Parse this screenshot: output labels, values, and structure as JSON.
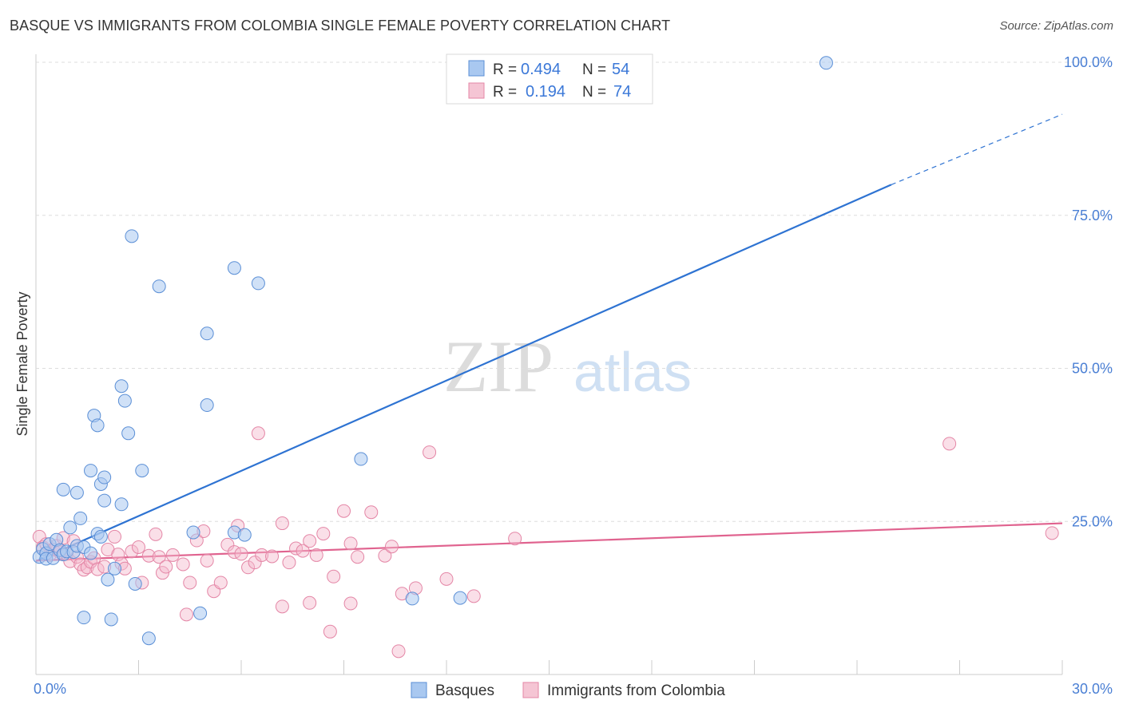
{
  "header": {
    "title": "BASQUE VS IMMIGRANTS FROM COLOMBIA SINGLE FEMALE POVERTY CORRELATION CHART",
    "source": "Source: ZipAtlas.com"
  },
  "watermark": {
    "zip": "ZIP",
    "atlas": "atlas"
  },
  "legend": {
    "row1": {
      "r_label": "R = ",
      "r_value": "0.494",
      "n_label": "N = ",
      "n_value": "54"
    },
    "row2": {
      "r_label": "R = ",
      "r_value": "0.194",
      "n_label": "N = ",
      "n_value": "74"
    }
  },
  "colors": {
    "blue_fill": "#a9c8f0",
    "blue_stroke": "#5b8fd6",
    "blue_line": "#2e73d2",
    "pink_fill": "#f5b8cb",
    "pink_stroke": "#e486a6",
    "pink_line": "#e0638f",
    "grid": "#dddddd",
    "tick_label": "#4a7fd4"
  },
  "chart_data": {
    "type": "scatter",
    "title": "BASQUE VS IMMIGRANTS FROM COLOMBIA SINGLE FEMALE POVERTY CORRELATION CHART",
    "xlabel": "",
    "ylabel": "Single Female Poverty",
    "xlim": [
      0,
      30
    ],
    "ylim": [
      0,
      103
    ],
    "x_tick_labels": [
      {
        "value": 0,
        "label": "0.0%"
      },
      {
        "value": 30,
        "label": "30.0%"
      }
    ],
    "y_tick_labels": [
      {
        "value": 25,
        "label": "25.0%"
      },
      {
        "value": 50,
        "label": "50.0%"
      },
      {
        "value": 75,
        "label": "75.0%"
      },
      {
        "value": 100,
        "label": "100.0%"
      }
    ],
    "y_gridlines": [
      25,
      50,
      75,
      100
    ],
    "series": [
      {
        "name": "Basques",
        "R": 0.494,
        "N": 54,
        "trend": {
          "x0": 0,
          "y0": 18.5,
          "x1": 25,
          "y1": 80,
          "dashed_to_x": 30,
          "dashed_to_y": 91.5
        },
        "points": [
          [
            0.1,
            19.2
          ],
          [
            0.2,
            20.5
          ],
          [
            0.3,
            19.8
          ],
          [
            0.3,
            18.9
          ],
          [
            0.4,
            21.3
          ],
          [
            0.5,
            19.0
          ],
          [
            0.6,
            22.0
          ],
          [
            0.7,
            20.3
          ],
          [
            0.8,
            19.6
          ],
          [
            0.9,
            20.1
          ],
          [
            1.0,
            24.0
          ],
          [
            1.1,
            20.0
          ],
          [
            1.2,
            21.0
          ],
          [
            1.3,
            25.5
          ],
          [
            1.4,
            20.8
          ],
          [
            0.8,
            30.2
          ],
          [
            1.2,
            29.7
          ],
          [
            1.6,
            19.8
          ],
          [
            1.6,
            33.3
          ],
          [
            1.7,
            42.3
          ],
          [
            1.8,
            40.7
          ],
          [
            1.9,
            31.1
          ],
          [
            2.0,
            28.4
          ],
          [
            2.0,
            32.2
          ],
          [
            1.8,
            23.0
          ],
          [
            1.9,
            22.5
          ],
          [
            2.1,
            15.5
          ],
          [
            2.3,
            17.3
          ],
          [
            2.5,
            47.1
          ],
          [
            2.5,
            27.8
          ],
          [
            2.6,
            44.7
          ],
          [
            2.7,
            39.4
          ],
          [
            2.8,
            71.6
          ],
          [
            3.1,
            33.3
          ],
          [
            2.9,
            14.8
          ],
          [
            3.3,
            5.9
          ],
          [
            3.6,
            63.4
          ],
          [
            1.4,
            9.3
          ],
          [
            2.2,
            9.0
          ],
          [
            4.6,
            23.2
          ],
          [
            4.8,
            10.0
          ],
          [
            5.0,
            55.7
          ],
          [
            5.0,
            44.0
          ],
          [
            5.8,
            66.4
          ],
          [
            5.8,
            23.2
          ],
          [
            6.1,
            22.8
          ],
          [
            6.5,
            63.9
          ],
          [
            9.5,
            35.2
          ],
          [
            11.0,
            12.4
          ],
          [
            12.4,
            12.5
          ],
          [
            23.1,
            99.9
          ]
        ]
      },
      {
        "name": "Immigrants from Colombia",
        "R": 0.194,
        "N": 74,
        "trend": {
          "x0": 0,
          "y0": 18.6,
          "x1": 30,
          "y1": 24.7
        },
        "points": [
          [
            0.1,
            22.5
          ],
          [
            0.2,
            20.8
          ],
          [
            0.3,
            21.3
          ],
          [
            0.4,
            19.5
          ],
          [
            0.5,
            20.4
          ],
          [
            0.6,
            21.0
          ],
          [
            0.7,
            20.0
          ],
          [
            0.8,
            22.3
          ],
          [
            0.9,
            19.7
          ],
          [
            1.0,
            18.5
          ],
          [
            1.1,
            21.8
          ],
          [
            1.2,
            19.2
          ],
          [
            1.3,
            18.0
          ],
          [
            1.4,
            17.1
          ],
          [
            1.5,
            17.5
          ],
          [
            1.6,
            18.4
          ],
          [
            1.7,
            19.0
          ],
          [
            1.8,
            17.2
          ],
          [
            2.0,
            17.6
          ],
          [
            2.1,
            20.4
          ],
          [
            2.3,
            22.5
          ],
          [
            2.4,
            19.6
          ],
          [
            2.5,
            18.1
          ],
          [
            2.6,
            17.3
          ],
          [
            2.8,
            20.1
          ],
          [
            3.0,
            20.8
          ],
          [
            3.1,
            15.0
          ],
          [
            3.3,
            19.4
          ],
          [
            3.5,
            22.9
          ],
          [
            3.6,
            19.2
          ],
          [
            3.7,
            16.6
          ],
          [
            3.8,
            17.6
          ],
          [
            4.0,
            19.5
          ],
          [
            4.3,
            18.0
          ],
          [
            4.5,
            15.0
          ],
          [
            4.7,
            21.9
          ],
          [
            4.9,
            23.4
          ],
          [
            5.0,
            18.6
          ],
          [
            5.2,
            13.6
          ],
          [
            5.4,
            15.0
          ],
          [
            5.6,
            21.2
          ],
          [
            5.8,
            20.0
          ],
          [
            5.9,
            24.3
          ],
          [
            6.0,
            19.7
          ],
          [
            6.2,
            17.5
          ],
          [
            6.4,
            18.3
          ],
          [
            6.6,
            19.5
          ],
          [
            6.9,
            19.3
          ],
          [
            7.2,
            24.7
          ],
          [
            7.4,
            18.3
          ],
          [
            7.6,
            20.6
          ],
          [
            7.8,
            20.2
          ],
          [
            8.0,
            21.8
          ],
          [
            8.2,
            19.5
          ],
          [
            8.4,
            23.0
          ],
          [
            8.7,
            16.0
          ],
          [
            9.0,
            26.7
          ],
          [
            9.2,
            21.4
          ],
          [
            9.4,
            19.2
          ],
          [
            9.8,
            26.5
          ],
          [
            10.2,
            19.4
          ],
          [
            10.4,
            20.9
          ],
          [
            10.7,
            13.2
          ],
          [
            11.1,
            14.1
          ],
          [
            11.5,
            36.3
          ],
          [
            12.0,
            15.6
          ],
          [
            12.8,
            12.8
          ],
          [
            14.0,
            22.2
          ],
          [
            4.4,
            9.8
          ],
          [
            6.5,
            39.4
          ],
          [
            7.2,
            11.1
          ],
          [
            8.0,
            11.7
          ],
          [
            9.2,
            11.6
          ],
          [
            10.6,
            3.8
          ],
          [
            8.6,
            7.0
          ],
          [
            26.7,
            37.7
          ],
          [
            29.7,
            23.1
          ]
        ]
      }
    ],
    "legend_position": "top-center",
    "bottom_legend": [
      "Basques",
      "Immigrants from Colombia"
    ]
  }
}
